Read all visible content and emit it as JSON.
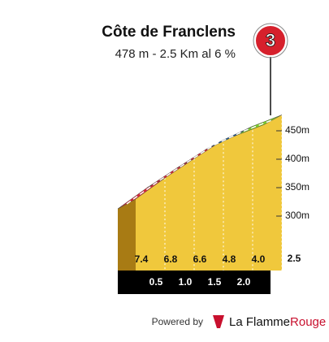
{
  "chart_data": {
    "type": "climb-profile",
    "title": "Côte de Franclens",
    "subtitle": "478 m - 2.5 Km al 6 %",
    "category": "3",
    "x": [
      0,
      0.5,
      1,
      1.5,
      2,
      2.5
    ],
    "x_labels": [
      null,
      "0.5",
      "1.0",
      "1.5",
      "2.0",
      "2.5"
    ],
    "elevations": [
      330,
      367,
      401,
      434,
      458,
      478
    ],
    "gradients": [
      7.4,
      6.8,
      6.6,
      4.8,
      4.0
    ],
    "gradient_labels": [
      "7.4",
      "6.8",
      "6.6",
      "4.8",
      "4.0"
    ],
    "colors": [
      "#d42a3c",
      "#d42a3c",
      "#d42a3c",
      "#1f5fa0",
      "#7ccf2a"
    ],
    "ylim": [
      300,
      450
    ],
    "yticks": [
      {
        "value": 300,
        "label": "300m"
      },
      {
        "value": 350,
        "label": "350m"
      },
      {
        "value": 400,
        "label": "400m"
      },
      {
        "value": 450,
        "label": "450m"
      }
    ]
  },
  "footer": {
    "powered_by": "Powered by",
    "brand_1": "La Flamme",
    "brand_2": "Rouge"
  }
}
